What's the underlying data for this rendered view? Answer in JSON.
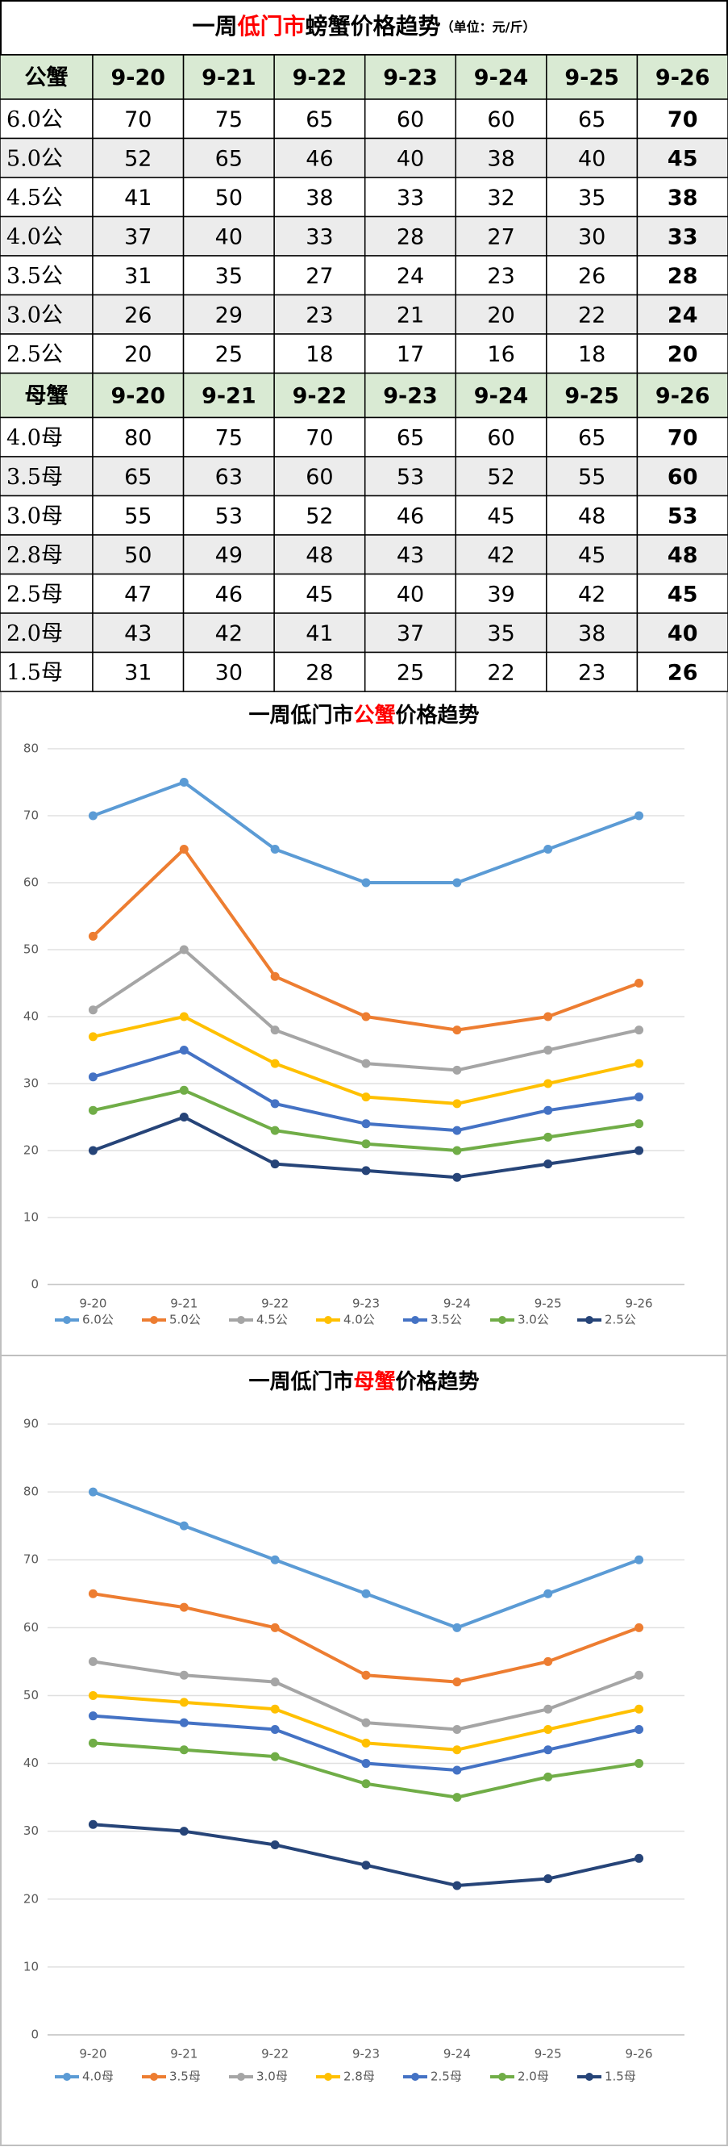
{
  "table": {
    "title_parts": [
      {
        "text": "一周",
        "color": "#000000"
      },
      {
        "text": "低门市",
        "color": "#ff0000"
      },
      {
        "text": "螃蟹价格趋势",
        "color": "#000000"
      }
    ],
    "unit": "（单位：元/斤）",
    "header_color": "#d9ead3",
    "stripe_color": "#ececec",
    "sections": [
      {
        "header": [
          "公蟹",
          "9-20",
          "9-21",
          "9-22",
          "9-23",
          "9-24",
          "9-25",
          "9-26"
        ],
        "rows": [
          [
            "6.0公",
            70,
            75,
            65,
            60,
            60,
            65,
            70
          ],
          [
            "5.0公",
            52,
            65,
            46,
            40,
            38,
            40,
            45
          ],
          [
            "4.5公",
            41,
            50,
            38,
            33,
            32,
            35,
            38
          ],
          [
            "4.0公",
            37,
            40,
            33,
            28,
            27,
            30,
            33
          ],
          [
            "3.5公",
            31,
            35,
            27,
            24,
            23,
            26,
            28
          ],
          [
            "3.0公",
            26,
            29,
            23,
            21,
            20,
            22,
            24
          ],
          [
            "2.5公",
            20,
            25,
            18,
            17,
            16,
            18,
            20
          ]
        ]
      },
      {
        "header": [
          "母蟹",
          "9-20",
          "9-21",
          "9-22",
          "9-23",
          "9-24",
          "9-25",
          "9-26"
        ],
        "rows": [
          [
            "4.0母",
            80,
            75,
            70,
            65,
            60,
            65,
            70
          ],
          [
            "3.5母",
            65,
            63,
            60,
            53,
            52,
            55,
            60
          ],
          [
            "3.0母",
            55,
            53,
            52,
            46,
            45,
            48,
            53
          ],
          [
            "2.8母",
            50,
            49,
            48,
            43,
            42,
            45,
            48
          ],
          [
            "2.5母",
            47,
            46,
            45,
            40,
            39,
            42,
            45
          ],
          [
            "2.0母",
            43,
            42,
            41,
            37,
            35,
            38,
            40
          ],
          [
            "1.5母",
            31,
            30,
            28,
            25,
            22,
            23,
            26
          ]
        ]
      }
    ]
  },
  "chart_data": [
    {
      "type": "line",
      "title_parts": [
        {
          "text": "一周低门市",
          "color": "#000000"
        },
        {
          "text": "公蟹",
          "color": "#ff0000"
        },
        {
          "text": "价格趋势",
          "color": "#000000"
        }
      ],
      "categories": [
        "9-20",
        "9-21",
        "9-22",
        "9-23",
        "9-24",
        "9-25",
        "9-26"
      ],
      "ylim": [
        0,
        80
      ],
      "yticks": [
        0,
        10,
        20,
        30,
        40,
        50,
        60,
        70,
        80
      ],
      "grid": true,
      "series": [
        {
          "name": "6.0公",
          "color": "#5b9bd5",
          "values": [
            70,
            75,
            65,
            60,
            60,
            65,
            70
          ]
        },
        {
          "name": "5.0公",
          "color": "#ed7d31",
          "values": [
            52,
            65,
            46,
            40,
            38,
            40,
            45
          ]
        },
        {
          "name": "4.5公",
          "color": "#a5a5a5",
          "values": [
            41,
            50,
            38,
            33,
            32,
            35,
            38
          ]
        },
        {
          "name": "4.0公",
          "color": "#ffc000",
          "values": [
            37,
            40,
            33,
            28,
            27,
            30,
            33
          ]
        },
        {
          "name": "3.5公",
          "color": "#4472c4",
          "values": [
            31,
            35,
            27,
            24,
            23,
            26,
            28
          ]
        },
        {
          "name": "3.0公",
          "color": "#70ad47",
          "values": [
            26,
            29,
            23,
            21,
            20,
            22,
            24
          ]
        },
        {
          "name": "2.5公",
          "color": "#264478",
          "values": [
            20,
            25,
            18,
            17,
            16,
            18,
            20
          ]
        }
      ]
    },
    {
      "type": "line",
      "title_parts": [
        {
          "text": "一周低门市",
          "color": "#000000"
        },
        {
          "text": "母蟹",
          "color": "#ff0000"
        },
        {
          "text": "价格趋势",
          "color": "#000000"
        }
      ],
      "categories": [
        "9-20",
        "9-21",
        "9-22",
        "9-23",
        "9-24",
        "9-25",
        "9-26"
      ],
      "ylim": [
        0,
        90
      ],
      "yticks": [
        0,
        10,
        20,
        30,
        40,
        50,
        60,
        70,
        80,
        90
      ],
      "grid": true,
      "series": [
        {
          "name": "4.0母",
          "color": "#5b9bd5",
          "values": [
            80,
            75,
            70,
            65,
            60,
            65,
            70
          ]
        },
        {
          "name": "3.5母",
          "color": "#ed7d31",
          "values": [
            65,
            63,
            60,
            53,
            52,
            55,
            60
          ]
        },
        {
          "name": "3.0母",
          "color": "#a5a5a5",
          "values": [
            55,
            53,
            52,
            46,
            45,
            48,
            53
          ]
        },
        {
          "name": "2.8母",
          "color": "#ffc000",
          "values": [
            50,
            49,
            48,
            43,
            42,
            45,
            48
          ]
        },
        {
          "name": "2.5母",
          "color": "#4472c4",
          "values": [
            47,
            46,
            45,
            40,
            39,
            42,
            45
          ]
        },
        {
          "name": "2.0母",
          "color": "#70ad47",
          "values": [
            43,
            42,
            41,
            37,
            35,
            38,
            40
          ]
        },
        {
          "name": "1.5母",
          "color": "#264478",
          "values": [
            31,
            30,
            28,
            25,
            22,
            23,
            26
          ]
        }
      ]
    }
  ]
}
